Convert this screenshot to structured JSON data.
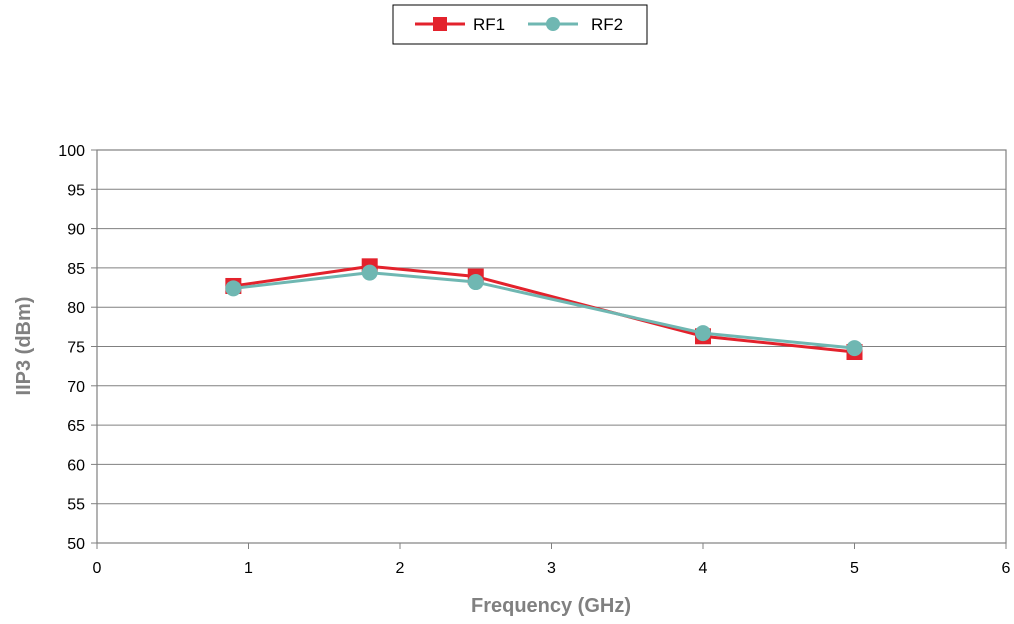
{
  "chart_data": {
    "type": "line",
    "xlabel": "Frequency (GHz)",
    "ylabel": "IIP3 (dBm)",
    "xlim": [
      0,
      6
    ],
    "ylim": [
      50,
      100
    ],
    "xticks": [
      0,
      1,
      2,
      3,
      4,
      5,
      6
    ],
    "yticks": [
      50,
      55,
      60,
      65,
      70,
      75,
      80,
      85,
      90,
      95,
      100
    ],
    "grid": "horizontal",
    "legend_position": "top-center",
    "series": [
      {
        "name": "RF1",
        "color": "#e3222c",
        "marker": "square",
        "x": [
          0.9,
          1.8,
          2.5,
          4.0,
          5.0
        ],
        "y": [
          82.7,
          85.2,
          83.9,
          76.3,
          74.3
        ]
      },
      {
        "name": "RF2",
        "color": "#6fb7b2",
        "marker": "circle",
        "x": [
          0.9,
          1.8,
          2.5,
          4.0,
          5.0
        ],
        "y": [
          82.4,
          84.4,
          83.2,
          76.7,
          74.8
        ]
      }
    ]
  }
}
